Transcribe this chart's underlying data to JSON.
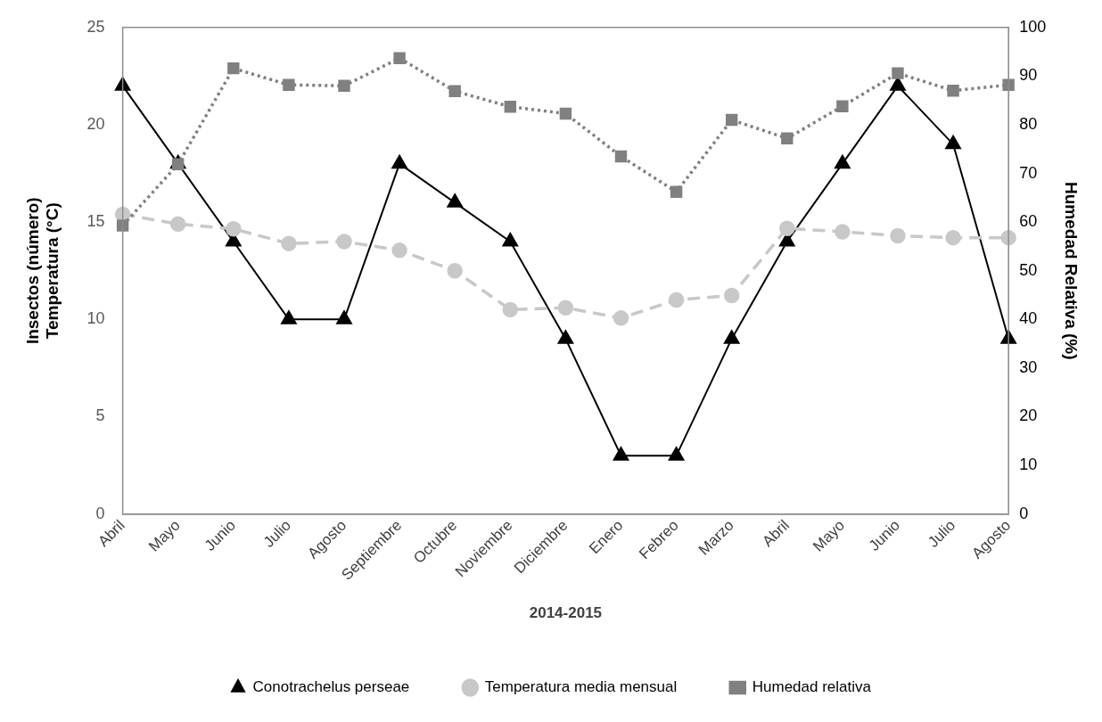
{
  "chart_data": {
    "type": "line",
    "xlabel": "2014-2015",
    "ylabel": "Insectos (número)\nTemperatura (°C)",
    "y2label": "Humedad Relativa (%)",
    "categories": [
      "Abril",
      "Mayo",
      "Junio",
      "Julio",
      "Agosto",
      "Septiembre",
      "Octubre",
      "Noviembre",
      "Diciembre",
      "Enero",
      "Febreo",
      "Marzo",
      "Abril",
      "Mayo",
      "Junio",
      "Julio",
      "Agosto"
    ],
    "series": [
      {
        "name": "Conotrachelus perseae",
        "color": "#000000",
        "marker": "triangle",
        "line_style": "solid",
        "values": [
          22,
          18,
          14,
          10,
          10,
          18,
          16,
          14,
          9,
          3,
          3,
          9,
          14,
          18,
          22,
          19,
          9
        ]
      },
      {
        "name": "Temperatura media mensual",
        "color": "#c8c8c8",
        "marker": "circle",
        "line_style": "dashed",
        "values": [
          15.4,
          14.9,
          14.65,
          13.9,
          14.0,
          13.55,
          12.5,
          10.5,
          10.6,
          10.07,
          11.0,
          11.23,
          14.68,
          14.5,
          14.3,
          14.2,
          14.2
        ]
      },
      {
        "name": "Humedad relativa",
        "color": "#808080",
        "marker": "square",
        "line_style": "dotted",
        "axis": "y2",
        "values": [
          59.3,
          71.9,
          91.6,
          88.2,
          88.0,
          93.7,
          86.9,
          83.7,
          82.3,
          73.5,
          66.2,
          81.0,
          77.2,
          83.8,
          90.6,
          87.0,
          88.2
        ]
      }
    ],
    "ylim": [
      0,
      25
    ],
    "yticks": [
      0,
      5,
      10,
      15,
      20,
      25
    ],
    "y2lim": [
      0,
      100
    ],
    "y2ticks": [
      0,
      10,
      20,
      30,
      40,
      50,
      60,
      70,
      80,
      90,
      100
    ],
    "grid": false,
    "legend": "bottom"
  }
}
